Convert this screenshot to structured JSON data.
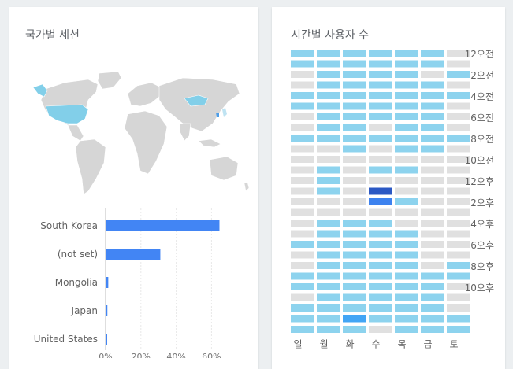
{
  "country_card": {
    "title": "국가별 세션",
    "map_highlight_colors": {
      "strong": "#82cfe9",
      "light": "#bfe3f2",
      "base": "#d6d6d6"
    },
    "chart_data": {
      "type": "bar",
      "orientation": "horizontal",
      "categories": [
        "South Korea",
        "(not set)",
        "Mongolia",
        "Japan",
        "United States"
      ],
      "values": [
        64.5,
        31,
        1.5,
        1,
        0.5
      ],
      "unit": "%",
      "xlim": [
        0,
        70
      ],
      "xticks": [
        "0%",
        "20%",
        "40%",
        "60%"
      ],
      "color": "#4285f4"
    }
  },
  "hourly_card": {
    "title": "시간별 사용자 수",
    "chart_data": {
      "type": "heatmap",
      "days": [
        "일",
        "월",
        "화",
        "수",
        "목",
        "금",
        "토"
      ],
      "hour_labels": [
        "12오전",
        "2오전",
        "4오전",
        "6오전",
        "8오전",
        "10오전",
        "12오후",
        "2오후",
        "4오후",
        "6오후",
        "8오후",
        "10오후"
      ],
      "values": [
        [
          2,
          2,
          2,
          2,
          2,
          2,
          0
        ],
        [
          2,
          2,
          2,
          2,
          2,
          2,
          0
        ],
        [
          0,
          2,
          2,
          2,
          2,
          0,
          2
        ],
        [
          0,
          2,
          2,
          2,
          2,
          2,
          0
        ],
        [
          2,
          2,
          2,
          2,
          2,
          2,
          2
        ],
        [
          2,
          2,
          2,
          2,
          2,
          2,
          0
        ],
        [
          0,
          2,
          2,
          2,
          2,
          2,
          0
        ],
        [
          0,
          2,
          2,
          0,
          2,
          2,
          0
        ],
        [
          2,
          2,
          2,
          2,
          2,
          2,
          2
        ],
        [
          0,
          0,
          2,
          0,
          2,
          2,
          0
        ],
        [
          0,
          0,
          0,
          0,
          0,
          0,
          0
        ],
        [
          0,
          2,
          0,
          2,
          2,
          0,
          0
        ],
        [
          0,
          2,
          0,
          0,
          0,
          0,
          0
        ],
        [
          0,
          2,
          0,
          33,
          0,
          0,
          0
        ],
        [
          0,
          0,
          0,
          20,
          2,
          0,
          0
        ],
        [
          0,
          0,
          0,
          0,
          0,
          0,
          0
        ],
        [
          0,
          2,
          2,
          2,
          0,
          0,
          0
        ],
        [
          0,
          2,
          2,
          2,
          2,
          0,
          0
        ],
        [
          2,
          2,
          2,
          2,
          2,
          0,
          0
        ],
        [
          0,
          2,
          2,
          2,
          2,
          0,
          0
        ],
        [
          0,
          2,
          2,
          2,
          2,
          0,
          2
        ],
        [
          2,
          2,
          2,
          2,
          2,
          2,
          2
        ],
        [
          2,
          2,
          2,
          2,
          2,
          2,
          0
        ],
        [
          0,
          2,
          2,
          2,
          2,
          2,
          0
        ],
        [
          2,
          2,
          2,
          2,
          2,
          2,
          0
        ],
        [
          2,
          2,
          16,
          2,
          2,
          2,
          2
        ],
        [
          2,
          2,
          2,
          0,
          2,
          2,
          2
        ]
      ],
      "legend": {
        "ticks": [
          "1",
          "9",
          "17",
          "25",
          "33"
        ],
        "colors": [
          "#8dd3ee",
          "#42a5f5",
          "#3d82ef",
          "#2b58c4"
        ]
      },
      "empty_color": "#e0e0e0"
    }
  }
}
